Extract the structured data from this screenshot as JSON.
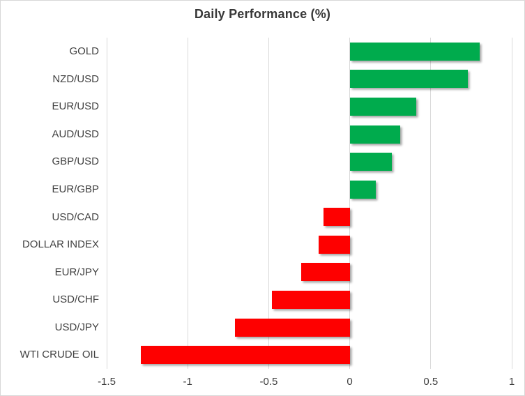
{
  "chart_data": {
    "type": "bar",
    "orientation": "horizontal",
    "title": "Daily Performance (%)",
    "categories": [
      "GOLD",
      "NZD/USD",
      "EUR/USD",
      "AUD/USD",
      "GBP/USD",
      "EUR/GBP",
      "USD/CAD",
      "DOLLAR INDEX",
      "EUR/JPY",
      "USD/CHF",
      "USD/JPY",
      "WTI CRUDE OIL"
    ],
    "values": [
      0.8,
      0.73,
      0.41,
      0.31,
      0.26,
      0.16,
      -0.16,
      -0.19,
      -0.3,
      -0.48,
      -0.71,
      -1.29
    ],
    "xlabel": "",
    "ylabel": "",
    "xlim": [
      -1.5,
      1.0
    ],
    "xticks": [
      -1.5,
      -1.0,
      -0.5,
      0,
      0.5,
      1.0
    ],
    "xtick_labels": [
      "-1.5",
      "-1",
      "-0.5",
      "0",
      "0.5",
      "1"
    ],
    "grid": true,
    "legend": false,
    "colors": {
      "positive": "#00AB4D",
      "negative": "#FE0000",
      "gridline": "#d9d9d9",
      "axis_text": "#404040",
      "title_text": "#383838",
      "border": "#d8d8d8",
      "background": "#ffffff"
    }
  }
}
